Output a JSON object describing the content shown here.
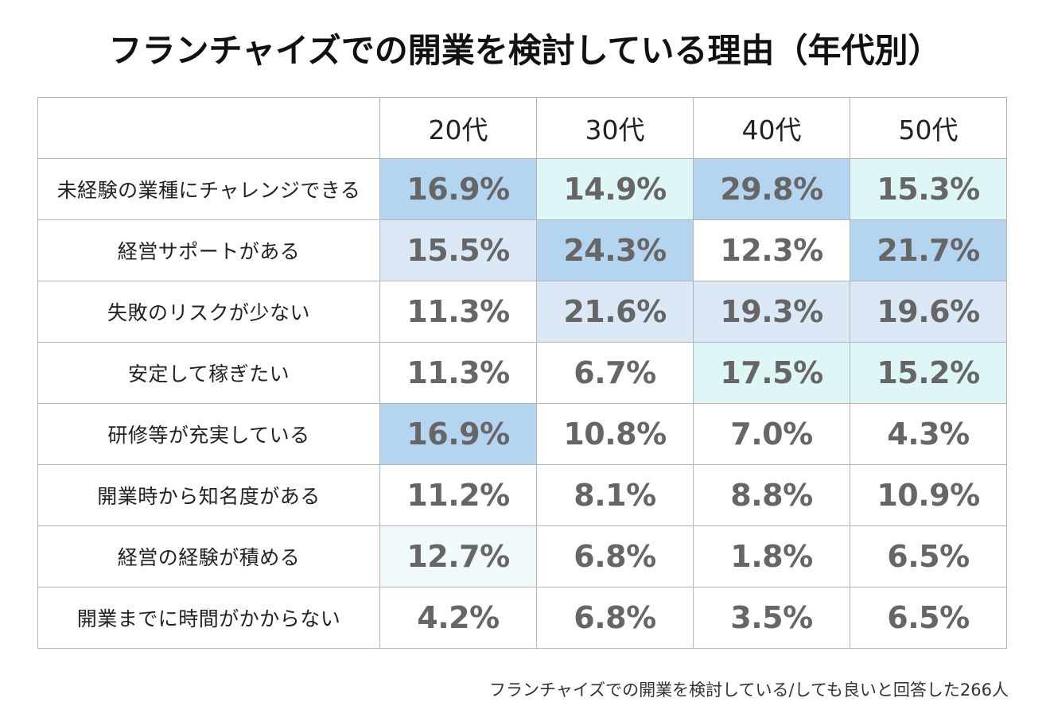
{
  "title": "フランチャイズでの開業を検討している理由（年代別）",
  "footnote": "フランチャイズでの開業を検討している/しても良いと回答した266人",
  "colors": {
    "shade-strong": "#b4d4ef",
    "shade-mid": "#dbe9f7",
    "shade-aqua": "#dff6f6",
    "shade-pale": "#f0fafa"
  },
  "chart_data": {
    "type": "table",
    "title": "フランチャイズでの開業を検討している理由（年代別）",
    "columns": [
      "20代",
      "30代",
      "40代",
      "50代"
    ],
    "rows": [
      {
        "label": "未経験の業種にチャレンジできる",
        "values": [
          "16.9%",
          "14.9%",
          "29.8%",
          "15.3%"
        ],
        "shades": [
          "shade-strong",
          "shade-aqua",
          "shade-strong",
          "shade-aqua"
        ]
      },
      {
        "label": "経営サポートがある",
        "values": [
          "15.5%",
          "24.3%",
          "12.3%",
          "21.7%"
        ],
        "shades": [
          "shade-mid",
          "shade-strong",
          "",
          "shade-strong"
        ]
      },
      {
        "label": "失敗のリスクが少ない",
        "values": [
          "11.3%",
          "21.6%",
          "19.3%",
          "19.6%"
        ],
        "shades": [
          "",
          "shade-mid",
          "shade-mid",
          "shade-mid"
        ]
      },
      {
        "label": "安定して稼ぎたい",
        "values": [
          "11.3%",
          "6.7%",
          "17.5%",
          "15.2%"
        ],
        "shades": [
          "",
          "",
          "shade-aqua",
          "shade-aqua"
        ]
      },
      {
        "label": "研修等が充実している",
        "values": [
          "16.9%",
          "10.8%",
          "7.0%",
          "4.3%"
        ],
        "shades": [
          "shade-strong",
          "",
          "",
          ""
        ]
      },
      {
        "label": "開業時から知名度がある",
        "values": [
          "11.2%",
          "8.1%",
          "8.8%",
          "10.9%"
        ],
        "shades": [
          "",
          "",
          "",
          ""
        ]
      },
      {
        "label": "経営の経験が積める",
        "values": [
          "12.7%",
          "6.8%",
          "1.8%",
          "6.5%"
        ],
        "shades": [
          "shade-pale",
          "",
          "",
          ""
        ]
      },
      {
        "label": "開業までに時間がかからない",
        "values": [
          "4.2%",
          "6.8%",
          "3.5%",
          "6.5%"
        ],
        "shades": [
          "",
          "",
          "",
          ""
        ]
      }
    ]
  }
}
